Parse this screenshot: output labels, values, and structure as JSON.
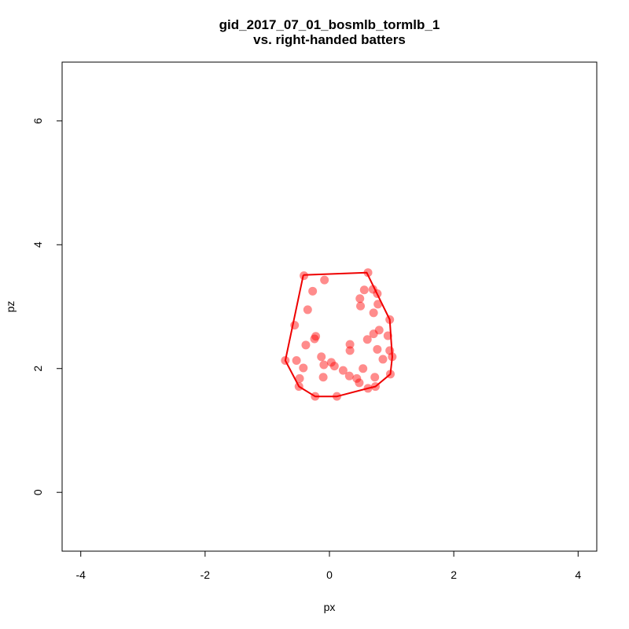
{
  "chart_data": {
    "type": "scatter",
    "title": "gid_2017_07_01_bosmlb_tormlb_1",
    "subtitle": "vs. right-handed batters",
    "xlabel": "px",
    "ylabel": "pz",
    "xlim": [
      -4.3,
      4.3
    ],
    "ylim": [
      -0.95,
      6.95
    ],
    "x_ticks": [
      -4,
      -2,
      0,
      2,
      4
    ],
    "y_ticks": [
      0,
      2,
      4,
      6
    ],
    "grid": false,
    "point_color": "#ff0000",
    "point_opacity": 0.45,
    "hull_color": "#ee0000",
    "points": [
      {
        "x": -0.41,
        "y": 3.5
      },
      {
        "x": -0.08,
        "y": 3.43
      },
      {
        "x": 0.62,
        "y": 3.55
      },
      {
        "x": -0.27,
        "y": 3.25
      },
      {
        "x": 0.56,
        "y": 3.27
      },
      {
        "x": 0.7,
        "y": 3.28
      },
      {
        "x": 0.77,
        "y": 3.21
      },
      {
        "x": 0.49,
        "y": 3.13
      },
      {
        "x": -0.35,
        "y": 2.95
      },
      {
        "x": 0.5,
        "y": 3.01
      },
      {
        "x": 0.78,
        "y": 3.04
      },
      {
        "x": 0.71,
        "y": 2.9
      },
      {
        "x": -0.56,
        "y": 2.7
      },
      {
        "x": 0.97,
        "y": 2.79
      },
      {
        "x": 0.8,
        "y": 2.62
      },
      {
        "x": 0.71,
        "y": 2.56
      },
      {
        "x": -0.22,
        "y": 2.52
      },
      {
        "x": -0.24,
        "y": 2.48
      },
      {
        "x": 0.94,
        "y": 2.53
      },
      {
        "x": 0.61,
        "y": 2.47
      },
      {
        "x": -0.38,
        "y": 2.38
      },
      {
        "x": 0.33,
        "y": 2.39
      },
      {
        "x": 0.33,
        "y": 2.29
      },
      {
        "x": 0.77,
        "y": 2.31
      },
      {
        "x": 0.97,
        "y": 2.29
      },
      {
        "x": -0.13,
        "y": 2.19
      },
      {
        "x": 1.01,
        "y": 2.19
      },
      {
        "x": 0.86,
        "y": 2.15
      },
      {
        "x": -0.71,
        "y": 2.13
      },
      {
        "x": -0.53,
        "y": 2.13
      },
      {
        "x": 0.03,
        "y": 2.1
      },
      {
        "x": -0.09,
        "y": 2.06
      },
      {
        "x": 0.08,
        "y": 2.04
      },
      {
        "x": -0.42,
        "y": 2.01
      },
      {
        "x": 0.54,
        "y": 2.0
      },
      {
        "x": 0.22,
        "y": 1.97
      },
      {
        "x": 0.98,
        "y": 1.91
      },
      {
        "x": 0.32,
        "y": 1.88
      },
      {
        "x": -0.1,
        "y": 1.86
      },
      {
        "x": 0.44,
        "y": 1.84
      },
      {
        "x": 0.73,
        "y": 1.86
      },
      {
        "x": -0.48,
        "y": 1.84
      },
      {
        "x": 0.48,
        "y": 1.77
      },
      {
        "x": -0.49,
        "y": 1.71
      },
      {
        "x": 0.62,
        "y": 1.68
      },
      {
        "x": 0.74,
        "y": 1.71
      },
      {
        "x": -0.23,
        "y": 1.55
      },
      {
        "x": 0.12,
        "y": 1.55
      }
    ],
    "hull": [
      {
        "x": -0.42,
        "y": 3.51
      },
      {
        "x": 0.6,
        "y": 3.55
      },
      {
        "x": 0.97,
        "y": 2.79
      },
      {
        "x": 1.01,
        "y": 2.19
      },
      {
        "x": 0.98,
        "y": 1.91
      },
      {
        "x": 0.74,
        "y": 1.71
      },
      {
        "x": 0.62,
        "y": 1.68
      },
      {
        "x": 0.12,
        "y": 1.55
      },
      {
        "x": -0.23,
        "y": 1.55
      },
      {
        "x": -0.49,
        "y": 1.71
      },
      {
        "x": -0.71,
        "y": 2.13
      },
      {
        "x": -0.42,
        "y": 3.51
      }
    ]
  }
}
